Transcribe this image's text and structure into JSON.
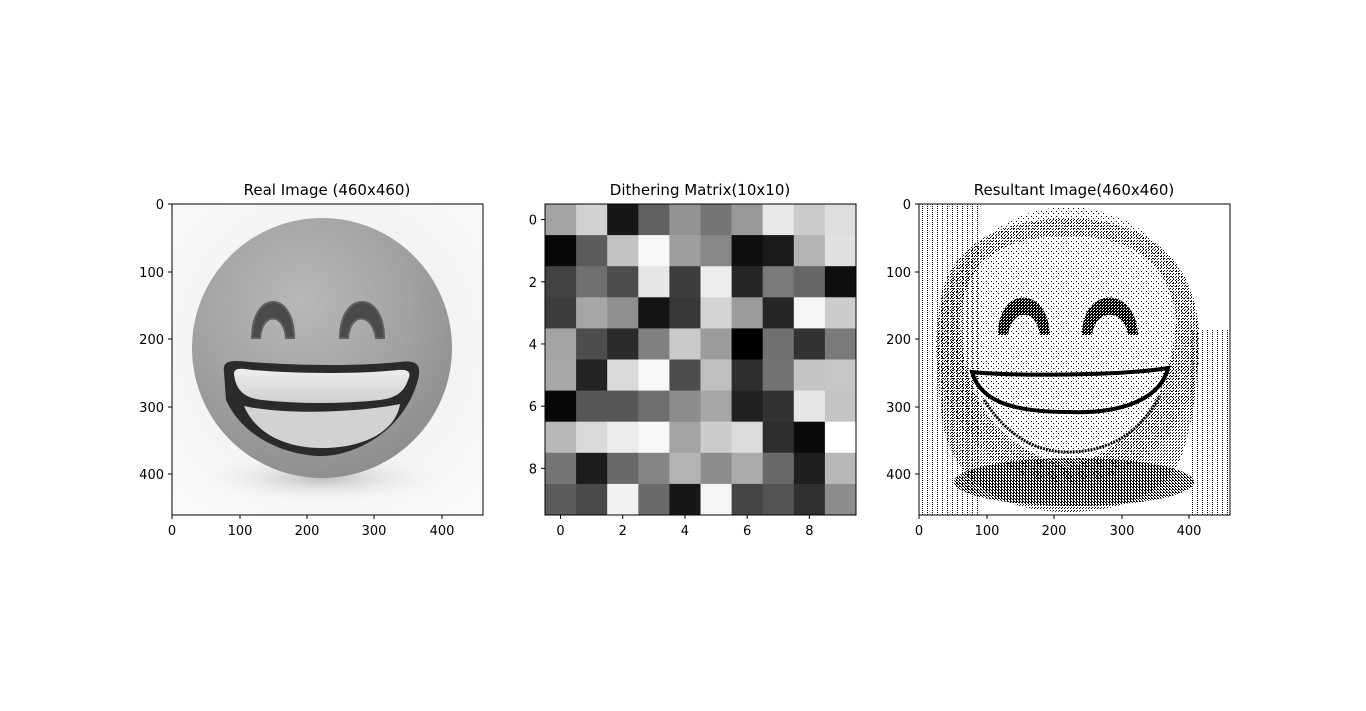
{
  "chart_data": [
    {
      "type": "image",
      "title": "Real Image (460x460)",
      "xlim": [
        0,
        460
      ],
      "ylim": [
        460,
        0
      ],
      "xticks": [
        0,
        100,
        200,
        300,
        400
      ],
      "yticks": [
        0,
        100,
        200,
        300,
        400
      ],
      "colormap": "gray",
      "content": "grinning-face-grayscale"
    },
    {
      "type": "heatmap",
      "title": "Dithering Matrix(10x10)",
      "xlim": [
        -0.5,
        9.5
      ],
      "ylim": [
        9.5,
        -0.5
      ],
      "xticks": [
        0,
        2,
        4,
        6,
        8
      ],
      "yticks": [
        0,
        2,
        4,
        6,
        8
      ],
      "colormap": "gray",
      "values": [
        [
          0.64,
          0.82,
          0.09,
          0.38,
          0.58,
          0.46,
          0.6,
          0.91,
          0.8,
          0.87
        ],
        [
          0.03,
          0.36,
          0.76,
          0.97,
          0.62,
          0.53,
          0.06,
          0.1,
          0.7,
          0.88
        ],
        [
          0.26,
          0.44,
          0.3,
          0.9,
          0.24,
          0.93,
          0.15,
          0.48,
          0.4,
          0.06
        ],
        [
          0.24,
          0.65,
          0.56,
          0.08,
          0.22,
          0.83,
          0.61,
          0.15,
          0.96,
          0.8
        ],
        [
          0.64,
          0.3,
          0.17,
          0.5,
          0.79,
          0.61,
          0.0,
          0.44,
          0.2,
          0.48
        ],
        [
          0.66,
          0.14,
          0.85,
          0.97,
          0.3,
          0.75,
          0.18,
          0.45,
          0.77,
          0.78
        ],
        [
          0.03,
          0.34,
          0.34,
          0.43,
          0.55,
          0.65,
          0.13,
          0.2,
          0.9,
          0.77
        ],
        [
          0.72,
          0.85,
          0.92,
          0.97,
          0.64,
          0.8,
          0.86,
          0.18,
          0.04,
          1.0
        ],
        [
          0.46,
          0.11,
          0.41,
          0.52,
          0.7,
          0.55,
          0.67,
          0.41,
          0.12,
          0.72
        ],
        [
          0.36,
          0.29,
          0.95,
          0.42,
          0.09,
          0.96,
          0.27,
          0.33,
          0.19,
          0.55
        ]
      ]
    },
    {
      "type": "image",
      "title": "Resultant Image(460x460)",
      "xlim": [
        0,
        460
      ],
      "ylim": [
        460,
        0
      ],
      "xticks": [
        0,
        100,
        200,
        300,
        400
      ],
      "yticks": [
        0,
        100,
        200,
        300,
        400
      ],
      "colormap": "binary",
      "content": "dithered-grinning-face"
    }
  ]
}
